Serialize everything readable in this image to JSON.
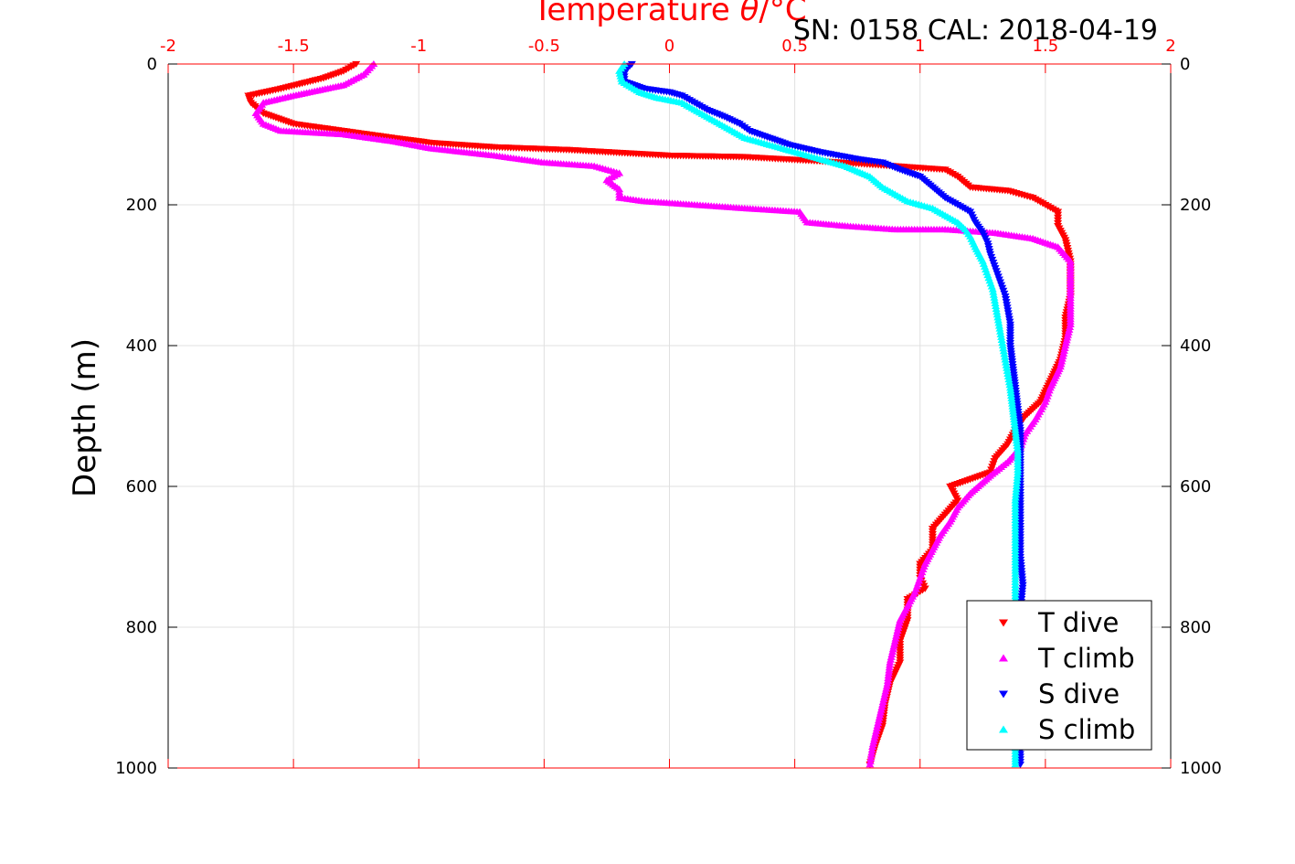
{
  "header": {
    "serial_cal": "SN: 0158  CAL: 2018-04-19"
  },
  "chart_data": {
    "type": "scatter",
    "title": "",
    "xlabel_prefix": "Temperature ",
    "xlabel_theta": "θ",
    "xlabel_unit": "/°C",
    "ylabel": "Depth (m)",
    "xlim": [
      -2,
      2
    ],
    "ylim": [
      0,
      1000
    ],
    "y_reversed": true,
    "grid": true,
    "legend_position": "bottom-right",
    "x_ticks": [
      "-2",
      "-1.5",
      "-1",
      "-0.5",
      "0",
      "0.5",
      "1",
      "1.5",
      "2"
    ],
    "y_ticks": [
      "0",
      "200",
      "400",
      "600",
      "800",
      "1000"
    ],
    "colors": {
      "axis_top": "#ff0000",
      "axis_other": "#000000",
      "grid": "#e0e0e0",
      "t_dive": "#ff0000",
      "t_climb": "#ff00ff",
      "s_dive": "#0000ff",
      "s_climb": "#00ffff"
    },
    "series": [
      {
        "name": "T dive",
        "marker": "triangle-down",
        "color": "#ff0000",
        "points": [
          [
            -1.25,
            0
          ],
          [
            -1.3,
            10
          ],
          [
            -1.38,
            20
          ],
          [
            -1.55,
            35
          ],
          [
            -1.68,
            45
          ],
          [
            -1.67,
            55
          ],
          [
            -1.62,
            70
          ],
          [
            -1.5,
            85
          ],
          [
            -1.3,
            95
          ],
          [
            -1.1,
            105
          ],
          [
            -0.95,
            112
          ],
          [
            -0.7,
            118
          ],
          [
            -0.4,
            122
          ],
          [
            -0.2,
            126
          ],
          [
            0.0,
            130
          ],
          [
            0.3,
            132
          ],
          [
            0.6,
            138
          ],
          [
            0.9,
            145
          ],
          [
            1.1,
            150
          ],
          [
            1.15,
            160
          ],
          [
            1.2,
            175
          ],
          [
            1.35,
            180
          ],
          [
            1.45,
            190
          ],
          [
            1.5,
            200
          ],
          [
            1.55,
            210
          ],
          [
            1.55,
            230
          ],
          [
            1.58,
            250
          ],
          [
            1.6,
            280
          ],
          [
            1.6,
            300
          ],
          [
            1.6,
            330
          ],
          [
            1.58,
            360
          ],
          [
            1.58,
            390
          ],
          [
            1.56,
            420
          ],
          [
            1.52,
            450
          ],
          [
            1.48,
            480
          ],
          [
            1.42,
            500
          ],
          [
            1.38,
            520
          ],
          [
            1.35,
            540
          ],
          [
            1.3,
            560
          ],
          [
            1.28,
            580
          ],
          [
            1.2,
            590
          ],
          [
            1.12,
            600
          ],
          [
            1.15,
            620
          ],
          [
            1.1,
            640
          ],
          [
            1.05,
            660
          ],
          [
            1.05,
            690
          ],
          [
            1.0,
            710
          ],
          [
            1.0,
            730
          ],
          [
            1.02,
            745
          ],
          [
            0.95,
            760
          ],
          [
            0.95,
            790
          ],
          [
            0.92,
            820
          ],
          [
            0.92,
            850
          ],
          [
            0.88,
            880
          ],
          [
            0.86,
            910
          ],
          [
            0.85,
            940
          ],
          [
            0.82,
            970
          ],
          [
            0.8,
            995
          ]
        ]
      },
      {
        "name": "T climb",
        "marker": "triangle-up",
        "color": "#ff00ff",
        "points": [
          [
            -1.18,
            0
          ],
          [
            -1.22,
            15
          ],
          [
            -1.3,
            30
          ],
          [
            -1.5,
            45
          ],
          [
            -1.62,
            55
          ],
          [
            -1.65,
            70
          ],
          [
            -1.62,
            85
          ],
          [
            -1.55,
            95
          ],
          [
            -1.3,
            100
          ],
          [
            -1.1,
            110
          ],
          [
            -0.95,
            120
          ],
          [
            -0.7,
            130
          ],
          [
            -0.5,
            140
          ],
          [
            -0.3,
            145
          ],
          [
            -0.2,
            155
          ],
          [
            -0.25,
            165
          ],
          [
            -0.2,
            178
          ],
          [
            -0.2,
            190
          ],
          [
            -0.1,
            195
          ],
          [
            0.1,
            200
          ],
          [
            0.3,
            205
          ],
          [
            0.52,
            210
          ],
          [
            0.55,
            225
          ],
          [
            0.7,
            230
          ],
          [
            0.9,
            235
          ],
          [
            1.1,
            235
          ],
          [
            1.3,
            240
          ],
          [
            1.45,
            248
          ],
          [
            1.55,
            260
          ],
          [
            1.6,
            280
          ],
          [
            1.6,
            310
          ],
          [
            1.6,
            340
          ],
          [
            1.6,
            370
          ],
          [
            1.58,
            400
          ],
          [
            1.56,
            430
          ],
          [
            1.52,
            460
          ],
          [
            1.5,
            480
          ],
          [
            1.46,
            505
          ],
          [
            1.42,
            525
          ],
          [
            1.4,
            545
          ],
          [
            1.35,
            565
          ],
          [
            1.28,
            585
          ],
          [
            1.2,
            610
          ],
          [
            1.15,
            630
          ],
          [
            1.12,
            650
          ],
          [
            1.08,
            670
          ],
          [
            1.05,
            690
          ],
          [
            1.02,
            710
          ],
          [
            1.0,
            730
          ],
          [
            0.98,
            750
          ],
          [
            0.95,
            770
          ],
          [
            0.92,
            790
          ],
          [
            0.9,
            820
          ],
          [
            0.88,
            850
          ],
          [
            0.87,
            880
          ],
          [
            0.85,
            910
          ],
          [
            0.83,
            940
          ],
          [
            0.81,
            970
          ],
          [
            0.8,
            995
          ]
        ]
      },
      {
        "name": "S dive",
        "marker": "triangle-down",
        "color": "#0000ff",
        "points": [
          [
            -0.15,
            0
          ],
          [
            -0.18,
            10
          ],
          [
            -0.18,
            25
          ],
          [
            -0.1,
            35
          ],
          [
            0.0,
            40
          ],
          [
            0.05,
            45
          ],
          [
            0.1,
            55
          ],
          [
            0.15,
            65
          ],
          [
            0.22,
            75
          ],
          [
            0.28,
            85
          ],
          [
            0.32,
            95
          ],
          [
            0.4,
            105
          ],
          [
            0.48,
            115
          ],
          [
            0.6,
            125
          ],
          [
            0.75,
            135
          ],
          [
            0.85,
            140
          ],
          [
            0.92,
            150
          ],
          [
            1.0,
            160
          ],
          [
            1.05,
            175
          ],
          [
            1.1,
            190
          ],
          [
            1.15,
            200
          ],
          [
            1.2,
            210
          ],
          [
            1.22,
            225
          ],
          [
            1.25,
            240
          ],
          [
            1.27,
            255
          ],
          [
            1.28,
            270
          ],
          [
            1.3,
            290
          ],
          [
            1.32,
            310
          ],
          [
            1.34,
            330
          ],
          [
            1.35,
            350
          ],
          [
            1.36,
            370
          ],
          [
            1.36,
            400
          ],
          [
            1.37,
            430
          ],
          [
            1.38,
            460
          ],
          [
            1.39,
            490
          ],
          [
            1.4,
            520
          ],
          [
            1.4,
            550
          ],
          [
            1.4,
            580
          ],
          [
            1.4,
            620
          ],
          [
            1.4,
            660
          ],
          [
            1.4,
            700
          ],
          [
            1.41,
            740
          ],
          [
            1.4,
            780
          ],
          [
            1.4,
            820
          ],
          [
            1.4,
            860
          ],
          [
            1.4,
            900
          ],
          [
            1.4,
            940
          ],
          [
            1.4,
            980
          ],
          [
            1.4,
            995
          ]
        ]
      },
      {
        "name": "S climb",
        "marker": "triangle-up",
        "color": "#00ffff",
        "points": [
          [
            -0.18,
            0
          ],
          [
            -0.2,
            10
          ],
          [
            -0.19,
            25
          ],
          [
            -0.12,
            40
          ],
          [
            -0.05,
            48
          ],
          [
            0.05,
            55
          ],
          [
            0.1,
            65
          ],
          [
            0.15,
            75
          ],
          [
            0.2,
            85
          ],
          [
            0.25,
            95
          ],
          [
            0.3,
            105
          ],
          [
            0.4,
            115
          ],
          [
            0.5,
            125
          ],
          [
            0.6,
            135
          ],
          [
            0.7,
            145
          ],
          [
            0.8,
            160
          ],
          [
            0.85,
            175
          ],
          [
            0.9,
            185
          ],
          [
            0.95,
            195
          ],
          [
            1.05,
            205
          ],
          [
            1.1,
            215
          ],
          [
            1.15,
            225
          ],
          [
            1.18,
            235
          ],
          [
            1.2,
            245
          ],
          [
            1.22,
            260
          ],
          [
            1.25,
            280
          ],
          [
            1.27,
            300
          ],
          [
            1.29,
            320
          ],
          [
            1.3,
            340
          ],
          [
            1.31,
            360
          ],
          [
            1.32,
            380
          ],
          [
            1.33,
            400
          ],
          [
            1.34,
            420
          ],
          [
            1.35,
            440
          ],
          [
            1.36,
            460
          ],
          [
            1.37,
            490
          ],
          [
            1.38,
            520
          ],
          [
            1.39,
            550
          ],
          [
            1.39,
            580
          ],
          [
            1.38,
            620
          ],
          [
            1.38,
            660
          ],
          [
            1.38,
            700
          ],
          [
            1.38,
            740
          ],
          [
            1.38,
            780
          ],
          [
            1.38,
            820
          ],
          [
            1.38,
            860
          ],
          [
            1.38,
            900
          ],
          [
            1.38,
            940
          ],
          [
            1.38,
            980
          ],
          [
            1.38,
            995
          ]
        ]
      }
    ]
  }
}
